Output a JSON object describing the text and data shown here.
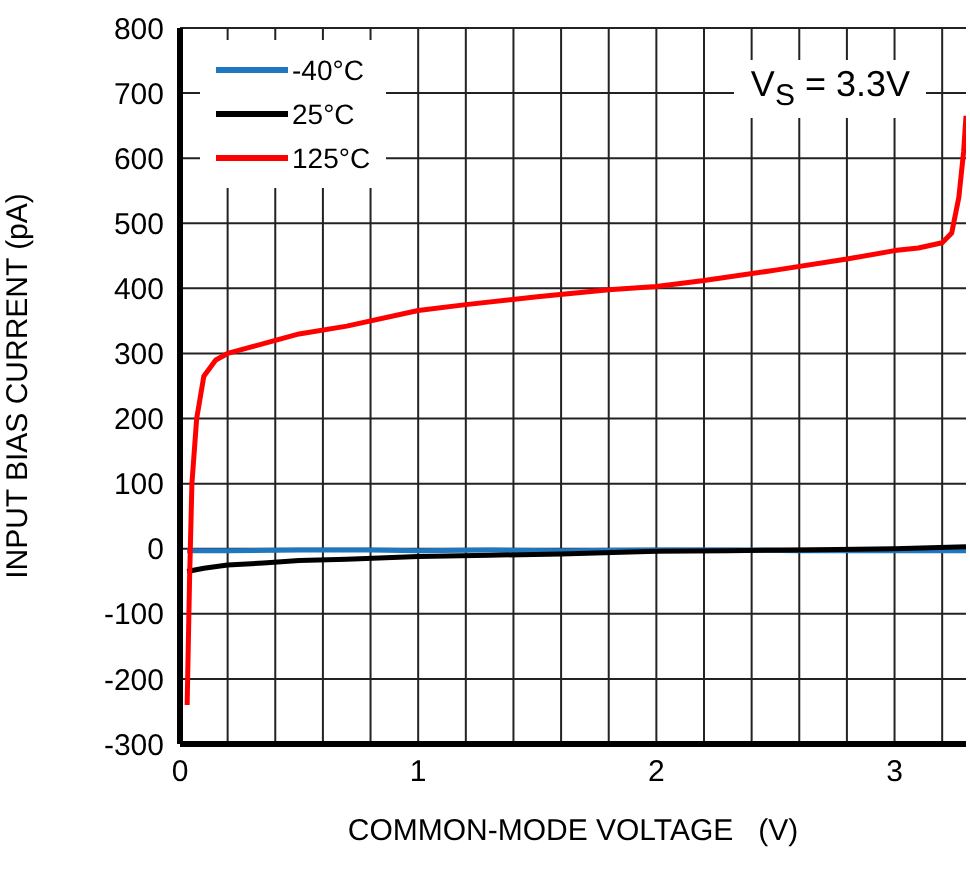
{
  "chart_data": {
    "type": "line",
    "xlabel": "COMMON-MODE VOLTAGE   (V)",
    "ylabel": "INPUT BIAS CURRENT (pA)",
    "annotations": [
      "V$_{S}$ = 3.3V"
    ],
    "xlim": [
      0,
      3.3
    ],
    "xticks": [
      0,
      {
        "value": 0.2,
        "label": null
      },
      {
        "value": 0.4,
        "label": null
      },
      {
        "value": 0.6,
        "label": null
      },
      {
        "value": 0.8,
        "label": null
      },
      1,
      {
        "value": 1.2,
        "label": null
      },
      {
        "value": 1.4,
        "label": null
      },
      {
        "value": 1.6,
        "label": null
      },
      {
        "value": 1.8,
        "label": null
      },
      2,
      {
        "value": 2.2,
        "label": null
      },
      {
        "value": 2.4,
        "label": null
      },
      {
        "value": 2.6,
        "label": null
      },
      {
        "value": 2.8,
        "label": null
      },
      3,
      {
        "value": 3.2,
        "label": null
      }
    ],
    "ylim": [
      -300,
      800
    ],
    "yticks": [
      -300,
      -200,
      -100,
      0,
      100,
      200,
      300,
      400,
      500,
      600,
      700,
      800
    ],
    "grid": true,
    "legend": "top left",
    "marker": "none",
    "line_style": "solid",
    "series": [
      {
        "name": "-40°C",
        "color": "#1f77c0",
        "x": [
          0.03,
          0.2,
          0.5,
          0.8,
          1.0,
          1.3,
          1.6,
          2.0,
          2.3,
          2.6,
          3.0,
          3.3
        ],
        "values": [
          -3,
          -3,
          -2,
          -2,
          -3,
          -2,
          -3,
          -2,
          -2,
          -3,
          -3,
          -3
        ]
      },
      {
        "name": "25°C",
        "color": "#000000",
        "x": [
          0.03,
          0.1,
          0.2,
          0.35,
          0.5,
          0.7,
          1.0,
          1.3,
          1.6,
          2.0,
          2.3,
          2.6,
          3.0,
          3.3
        ],
        "values": [
          -35,
          -30,
          -25,
          -22,
          -18,
          -16,
          -12,
          -10,
          -8,
          -4,
          -3,
          -2,
          0,
          3
        ]
      },
      {
        "name": "125°C",
        "color": "#ff0000",
        "x": [
          0.03,
          0.04,
          0.05,
          0.07,
          0.1,
          0.15,
          0.2,
          0.3,
          0.4,
          0.5,
          0.7,
          1.0,
          1.2,
          1.5,
          1.8,
          2.0,
          2.2,
          2.5,
          2.8,
          3.0,
          3.1,
          3.2,
          3.24,
          3.27,
          3.29,
          3.3
        ],
        "values": [
          -240,
          -50,
          100,
          200,
          265,
          290,
          300,
          310,
          320,
          330,
          342,
          366,
          375,
          387,
          398,
          403,
          412,
          428,
          445,
          458,
          462,
          470,
          485,
          540,
          610,
          665
        ]
      }
    ]
  }
}
